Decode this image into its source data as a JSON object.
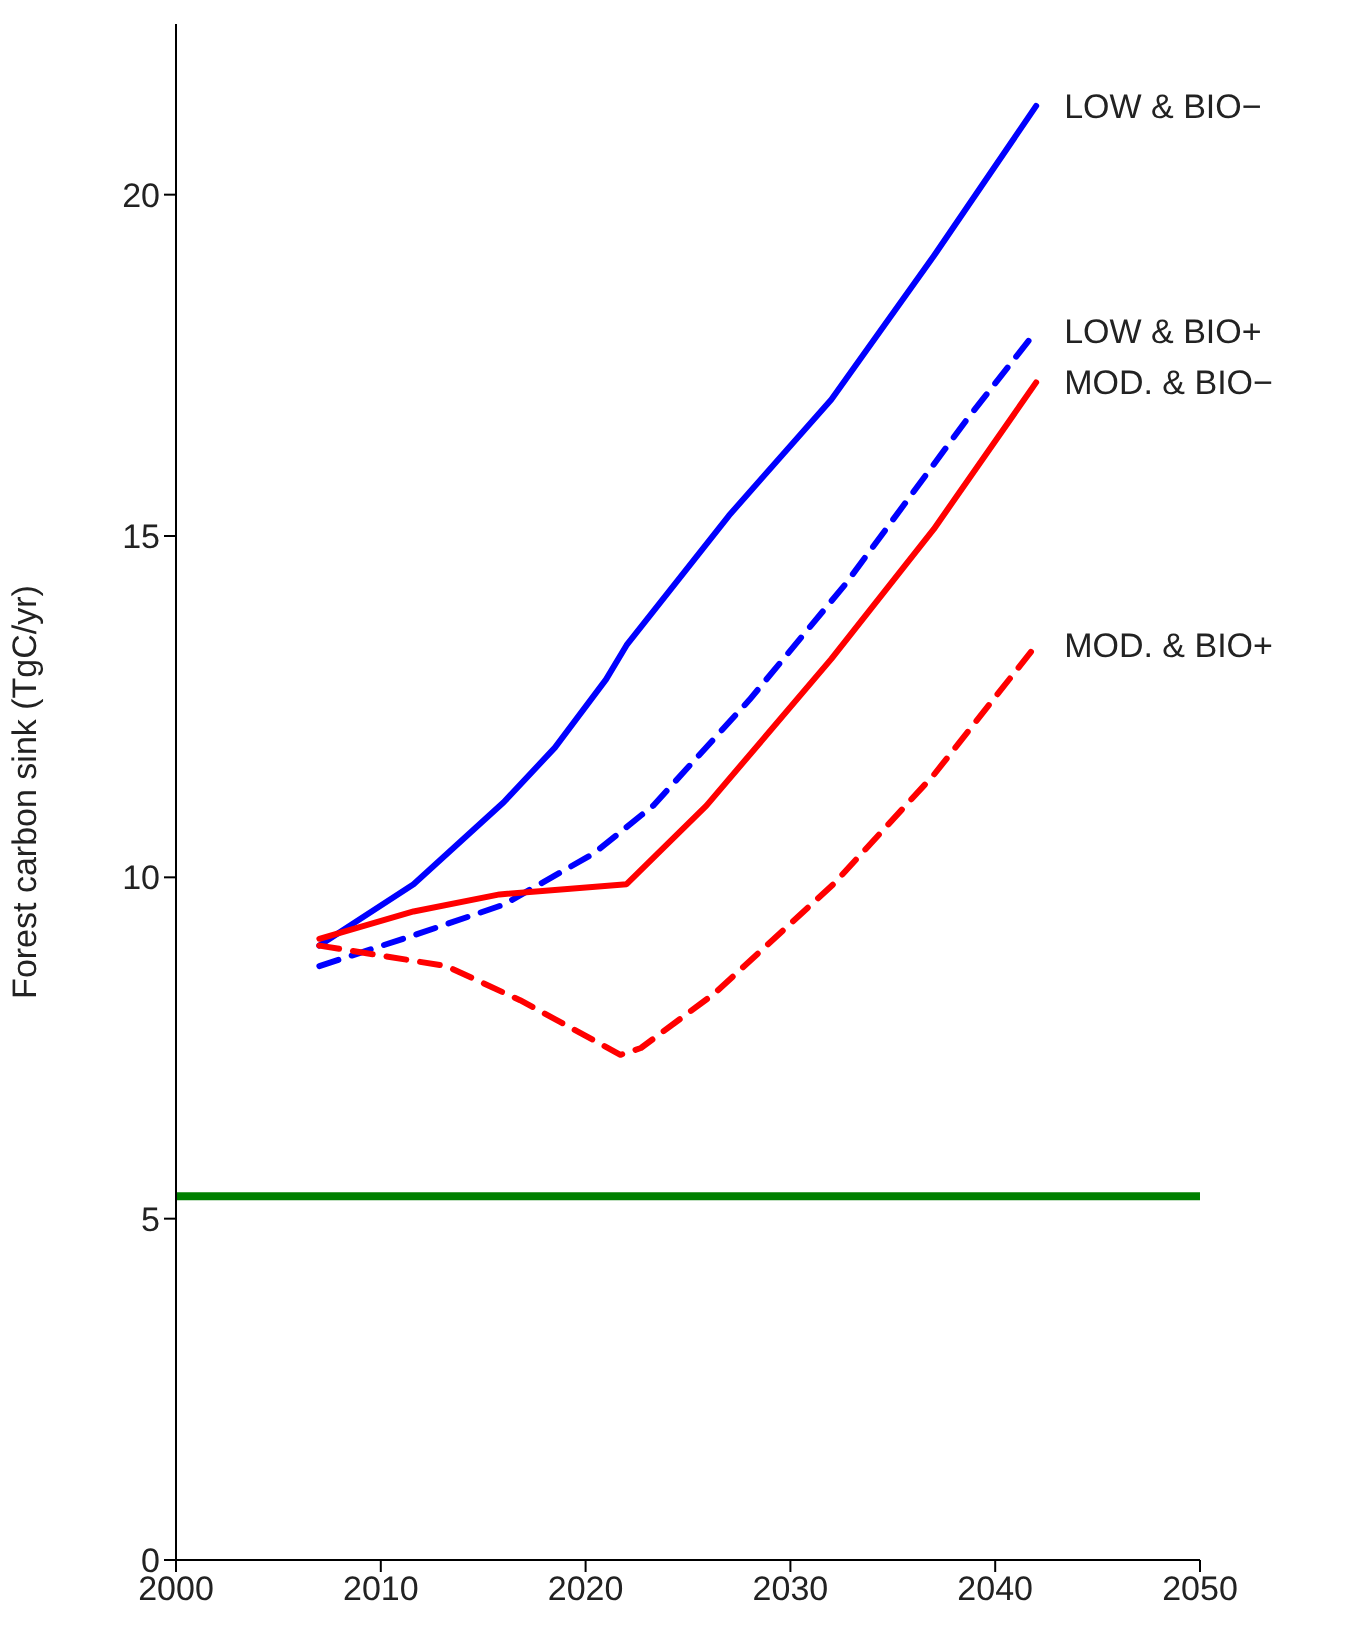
{
  "chart_data": {
    "type": "line",
    "ylabel": "Forest carbon sink (TgC/yr)",
    "xlim": [
      2000,
      2050
    ],
    "xticks": [
      2000,
      2010,
      2020,
      2030,
      2040,
      2050
    ],
    "ylim": [
      0,
      22.5
    ],
    "yticks": [
      0,
      5,
      10,
      15,
      20
    ],
    "grid": false,
    "legend": false,
    "marker": "none",
    "series": [
      {
        "name": "LOW & BIO−",
        "color": "#0000ff",
        "line_style": "solid",
        "x": [
          2007,
          2011.6,
          2016,
          2018.5,
          2021,
          2022,
          2027,
          2032,
          2037,
          2042
        ],
        "values": [
          9.0,
          9.9,
          11.1,
          11.9,
          12.9,
          13.4,
          15.3,
          17.0,
          19.1,
          21.3
        ]
      },
      {
        "name": "LOW & BIO+",
        "color": "#0000ff",
        "line_style": "dashed",
        "x": [
          2007,
          2011.6,
          2016,
          2020.4,
          2023.3,
          2028,
          2032.7,
          2038.6,
          2042
        ],
        "values": [
          8.7,
          9.15,
          9.6,
          10.35,
          11.05,
          12.6,
          14.3,
          16.7,
          18.0
        ]
      },
      {
        "name": "MOD. & BIO−",
        "color": "#ff0000",
        "line_style": "solid",
        "x": [
          2007,
          2011.6,
          2015.8,
          2022,
          2025.9,
          2032,
          2037,
          2042
        ],
        "values": [
          9.1,
          9.5,
          9.75,
          9.9,
          11.05,
          13.2,
          15.1,
          17.25
        ]
      },
      {
        "name": "MOD. & BIO+",
        "color": "#ff0000",
        "line_style": "dashed",
        "x": [
          2007,
          2013.2,
          2016.8,
          2021.7,
          2022.7,
          2026.3,
          2032.1,
          2037,
          2042
        ],
        "values": [
          9.0,
          8.7,
          8.2,
          7.4,
          7.5,
          8.3,
          9.9,
          11.5,
          13.4
        ]
      }
    ],
    "ref_lines": [
      {
        "axis": "y",
        "value": 5.33,
        "color": "#008000",
        "line_style": "solid"
      }
    ]
  }
}
